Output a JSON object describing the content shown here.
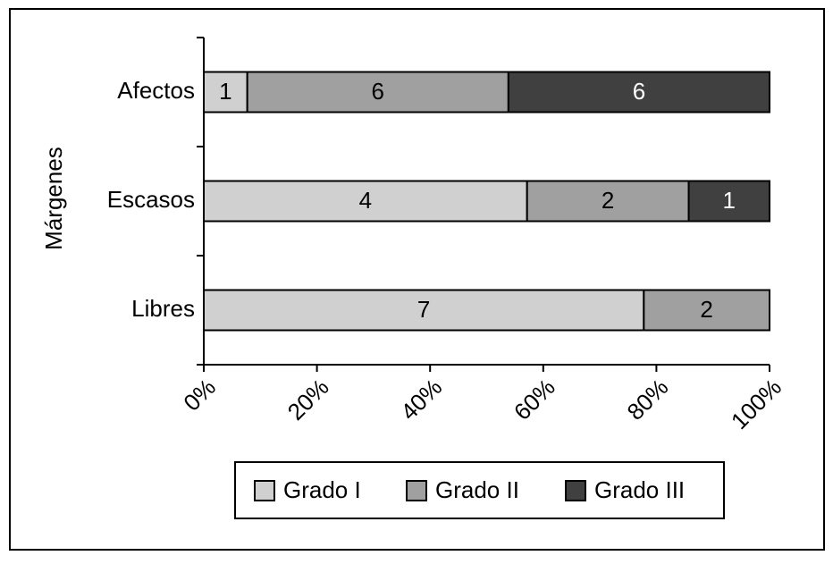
{
  "chart_data": {
    "type": "bar",
    "orientation": "horizontal",
    "stacking": "percent",
    "y_label": "Márgenes",
    "categories": [
      "Afectos",
      "Escasos",
      "Libres"
    ],
    "series": [
      {
        "name": "Grado I",
        "color": "#d0d0d0",
        "values": [
          1,
          4,
          7
        ]
      },
      {
        "name": "Grado II",
        "color": "#a0a0a0",
        "values": [
          6,
          2,
          2
        ]
      },
      {
        "name": "Grado III",
        "color": "#404040",
        "values": [
          6,
          1,
          null
        ]
      }
    ],
    "xlim": [
      0,
      100
    ],
    "xticks": [
      {
        "value": 0,
        "label": "0%"
      },
      {
        "value": 20,
        "label": "20%"
      },
      {
        "value": 40,
        "label": "40%"
      },
      {
        "value": 60,
        "label": "60%"
      },
      {
        "value": 80,
        "label": "80%"
      },
      {
        "value": 100,
        "label": "100%"
      }
    ],
    "legend": "bottom"
  }
}
